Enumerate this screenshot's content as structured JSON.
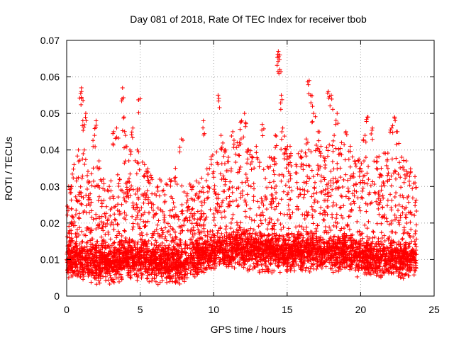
{
  "chart_data": {
    "type": "scatter",
    "title": "Day 081 of 2018, Rate Of TEC Index for receiver tbob",
    "xlabel": "GPS time / hours",
    "ylabel": "ROTI / TECUs",
    "xlim": [
      0,
      25
    ],
    "ylim": [
      0,
      0.07
    ],
    "xticks": [
      0,
      5,
      10,
      15,
      20,
      25
    ],
    "yticks": [
      0,
      0.01,
      0.02,
      0.03,
      0.04,
      0.05,
      0.06,
      0.07
    ],
    "xtick_labels": [
      "0",
      "5",
      "10",
      "15",
      "20",
      "25"
    ],
    "ytick_labels": [
      "0",
      "0.01",
      "0.02",
      "0.03",
      "0.04",
      "0.05",
      "0.06",
      "0.07"
    ],
    "grid": true,
    "marker": "+",
    "marker_color": "#ff0000",
    "series": [
      {
        "name": "ROTI",
        "x": [
          0.1,
          0.3,
          0.5,
          0.8,
          1.0,
          1.0,
          1.1,
          1.2,
          1.3,
          1.4,
          1.6,
          1.9,
          2.0,
          2.2,
          2.5,
          2.9,
          3.2,
          3.4,
          3.6,
          3.8,
          3.9,
          4.0,
          4.1,
          4.3,
          4.5,
          4.8,
          5.0,
          5.3,
          5.5,
          5.8,
          6.2,
          6.6,
          7.0,
          7.4,
          7.8,
          8.2,
          8.6,
          9.0,
          9.3,
          9.6,
          10.0,
          10.3,
          10.5,
          10.8,
          11.0,
          11.3,
          11.6,
          11.9,
          12.1,
          12.3,
          12.6,
          12.9,
          13.3,
          13.8,
          14.2,
          14.4,
          14.5,
          14.5,
          14.6,
          14.7,
          14.9,
          15.2,
          15.6,
          16.0,
          16.3,
          16.5,
          16.6,
          16.8,
          17.1,
          17.3,
          17.5,
          17.8,
          18.0,
          18.2,
          18.4,
          18.7,
          19.0,
          19.3,
          19.6,
          20.0,
          20.3,
          20.5,
          20.8,
          21.1,
          21.4,
          21.8,
          22.1,
          22.3,
          22.5,
          22.8,
          23.1,
          23.4,
          23.7
        ],
        "y": [
          0.012,
          0.03,
          0.036,
          0.04,
          0.057,
          0.056,
          0.048,
          0.04,
          0.05,
          0.033,
          0.028,
          0.044,
          0.048,
          0.037,
          0.032,
          0.03,
          0.045,
          0.046,
          0.032,
          0.057,
          0.049,
          0.044,
          0.031,
          0.04,
          0.046,
          0.04,
          0.054,
          0.036,
          0.034,
          0.028,
          0.03,
          0.029,
          0.032,
          0.035,
          0.043,
          0.028,
          0.03,
          0.031,
          0.048,
          0.03,
          0.034,
          0.055,
          0.044,
          0.04,
          0.038,
          0.045,
          0.042,
          0.048,
          0.05,
          0.04,
          0.038,
          0.041,
          0.047,
          0.038,
          0.044,
          0.067,
          0.066,
          0.062,
          0.055,
          0.046,
          0.04,
          0.041,
          0.036,
          0.038,
          0.043,
          0.059,
          0.055,
          0.05,
          0.045,
          0.041,
          0.038,
          0.056,
          0.055,
          0.044,
          0.05,
          0.042,
          0.045,
          0.041,
          0.037,
          0.035,
          0.044,
          0.049,
          0.046,
          0.038,
          0.035,
          0.037,
          0.046,
          0.049,
          0.045,
          0.038,
          0.037,
          0.034,
          0.031
        ]
      }
    ],
    "cloud_envelope": {
      "hours": [
        0,
        1,
        2,
        3,
        4,
        5,
        6,
        7,
        8,
        9,
        10,
        11,
        12,
        13,
        14,
        15,
        16,
        17,
        18,
        19,
        20,
        21,
        22,
        23,
        23.8
      ],
      "baseline": [
        0.01,
        0.01,
        0.009,
        0.009,
        0.01,
        0.01,
        0.009,
        0.009,
        0.009,
        0.011,
        0.012,
        0.013,
        0.013,
        0.012,
        0.012,
        0.012,
        0.012,
        0.012,
        0.012,
        0.012,
        0.011,
        0.01,
        0.01,
        0.01,
        0.01
      ],
      "upper": [
        0.022,
        0.03,
        0.028,
        0.024,
        0.03,
        0.03,
        0.025,
        0.024,
        0.022,
        0.024,
        0.032,
        0.035,
        0.036,
        0.03,
        0.03,
        0.034,
        0.032,
        0.033,
        0.034,
        0.032,
        0.03,
        0.03,
        0.032,
        0.028,
        0.026
      ]
    }
  }
}
